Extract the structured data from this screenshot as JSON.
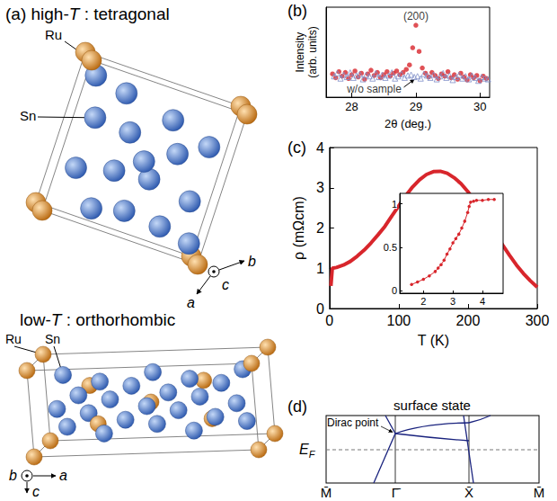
{
  "panel_a": {
    "label": "(a)",
    "structures": [
      {
        "title": "high-T : tetragonal",
        "atom_labels": [
          "Ru",
          "Sn"
        ],
        "axes": [
          "c",
          "b",
          "a"
        ]
      },
      {
        "title": "low-T : orthorhombic",
        "atom_labels": [
          "Ru",
          "Sn"
        ],
        "axes": [
          "b",
          "a",
          "c"
        ]
      }
    ]
  },
  "chart_data": [
    {
      "panel": "(b)",
      "type": "scatter",
      "xlabel": "2θ (deg.)",
      "ylabel": "Intensity (arb. units)",
      "xlim": [
        27.6,
        30.15
      ],
      "xticks": [
        28,
        29,
        30
      ],
      "ylim": [
        0,
        12
      ],
      "tick_labels": "x",
      "series": [
        {
          "color": "#d8262c",
          "marker": "circle",
          "x": [
            27.7,
            27.75,
            27.8,
            27.85,
            27.9,
            27.95,
            28,
            28.05,
            28.1,
            28.15,
            28.2,
            28.25,
            28.3,
            28.35,
            28.4,
            28.45,
            28.5,
            28.55,
            28.6,
            28.65,
            28.7,
            28.75,
            28.8,
            28.85,
            28.9,
            28.95,
            29,
            29.05,
            29.1,
            29.15,
            29.2,
            29.25,
            29.3,
            29.35,
            29.4,
            29.45,
            29.5,
            29.55,
            29.6,
            29.65,
            29.7,
            29.75,
            29.8,
            29.85,
            29.9,
            29.95,
            30,
            30.05,
            30.1
          ],
          "values": [
            3.1,
            2.6,
            3.4,
            2.8,
            3.3,
            2.5,
            3.0,
            3.5,
            2.7,
            3.2,
            2.4,
            3.1,
            3.6,
            2.9,
            3.3,
            2.6,
            3.0,
            3.4,
            2.8,
            3.2,
            3.5,
            3.0,
            3.3,
            3.7,
            4.3,
            6.6,
            9.6,
            6.1,
            3.9,
            3.2,
            2.7,
            3.3,
            2.9,
            2.5,
            3.1,
            2.8,
            3.4,
            2.6,
            3.0,
            2.4,
            3.2,
            2.7,
            2.3,
            3.0,
            2.6,
            2.9,
            2.2,
            2.8,
            2.5
          ]
        },
        {
          "color": "#7f8fc8",
          "marker": "triangle-open",
          "x": [
            27.725,
            27.775,
            27.825,
            27.875,
            27.925,
            27.975,
            28.025,
            28.075,
            28.125,
            28.175,
            28.225,
            28.275,
            28.325,
            28.375,
            28.425,
            28.475,
            28.525,
            28.575,
            28.625,
            28.675,
            28.725,
            28.775,
            28.825,
            28.875,
            28.925,
            28.975,
            29.025,
            29.075,
            29.125,
            29.175,
            29.225,
            29.275,
            29.325,
            29.375,
            29.425,
            29.475,
            29.525,
            29.575,
            29.625,
            29.675,
            29.725,
            29.775,
            29.825,
            29.875,
            29.925,
            29.975,
            30.025,
            30.075,
            30.125
          ],
          "values": [
            2.8,
            3.2,
            2.5,
            3.0,
            2.7,
            3.3,
            2.6,
            2.9,
            3.1,
            2.4,
            3.0,
            2.8,
            2.5,
            3.2,
            2.7,
            3.0,
            2.6,
            2.9,
            3.3,
            2.5,
            2.8,
            3.1,
            2.6,
            2.9,
            3.0,
            2.7,
            2.8,
            2.5,
            3.1,
            2.9,
            2.6,
            3.0,
            2.4,
            2.8,
            3.2,
            2.6,
            2.9,
            2.3,
            2.7,
            3.0,
            2.5,
            2.8,
            2.4,
            2.9,
            2.6,
            2.2,
            2.7,
            2.5,
            2.4
          ]
        }
      ],
      "annotations": [
        {
          "text": "(200)",
          "x": 29.0,
          "y": 10.8
        },
        {
          "text": "w/o sample",
          "x": 28.35,
          "y": 1.1
        }
      ]
    },
    {
      "panel": "(c)",
      "type": "line",
      "xlabel": "T (K)",
      "ylabel": "ρ (mΩcm)",
      "xlim": [
        0,
        300
      ],
      "xticks": [
        0,
        100,
        200,
        300
      ],
      "ylim": [
        0,
        4
      ],
      "yticks": [
        0,
        1,
        2,
        3,
        4
      ],
      "color": "#d8262c",
      "x": [
        2,
        4,
        10,
        20,
        30,
        40,
        50,
        60,
        70,
        80,
        90,
        100,
        110,
        120,
        130,
        140,
        150,
        160,
        170,
        180,
        190,
        200,
        210,
        220,
        230,
        240,
        250,
        260,
        270,
        280,
        290,
        300
      ],
      "values": [
        0.56,
        1.0,
        1.02,
        1.08,
        1.17,
        1.3,
        1.45,
        1.63,
        1.83,
        2.04,
        2.3,
        2.55,
        2.8,
        3.02,
        3.2,
        3.33,
        3.4,
        3.41,
        3.36,
        3.25,
        3.1,
        2.9,
        2.65,
        2.4,
        2.12,
        1.85,
        1.58,
        1.32,
        1.08,
        0.87,
        0.69,
        0.53
      ],
      "inset": {
        "type": "line",
        "marker": "circle",
        "color": "#d8262c",
        "xlim": [
          1.2,
          4.7
        ],
        "xticks": [
          2,
          3,
          4
        ],
        "ylim": [
          -0.03,
          1.12
        ],
        "yticks": [
          0,
          0.5,
          1
        ],
        "x": [
          1.6,
          1.8,
          2.0,
          2.2,
          2.4,
          2.5,
          2.6,
          2.7,
          2.8,
          2.9,
          3.0,
          3.1,
          3.2,
          3.3,
          3.4,
          3.5,
          3.55,
          3.6,
          3.7,
          3.8,
          4.0,
          4.2,
          4.4
        ],
        "values": [
          0.07,
          0.1,
          0.13,
          0.17,
          0.22,
          0.26,
          0.3,
          0.35,
          0.42,
          0.48,
          0.55,
          0.6,
          0.65,
          0.72,
          0.8,
          0.9,
          0.97,
          1.02,
          1.03,
          1.04,
          1.04,
          1.05,
          1.05
        ]
      }
    }
  ],
  "panel_d": {
    "label": "(d)",
    "title": "surface state",
    "annotation": "Dirac point",
    "fermi_level": {
      "symbol": "E",
      "subscript": "F"
    },
    "k_labels": [
      "M̄",
      "Γ̄",
      "X̄",
      "M̄"
    ]
  }
}
